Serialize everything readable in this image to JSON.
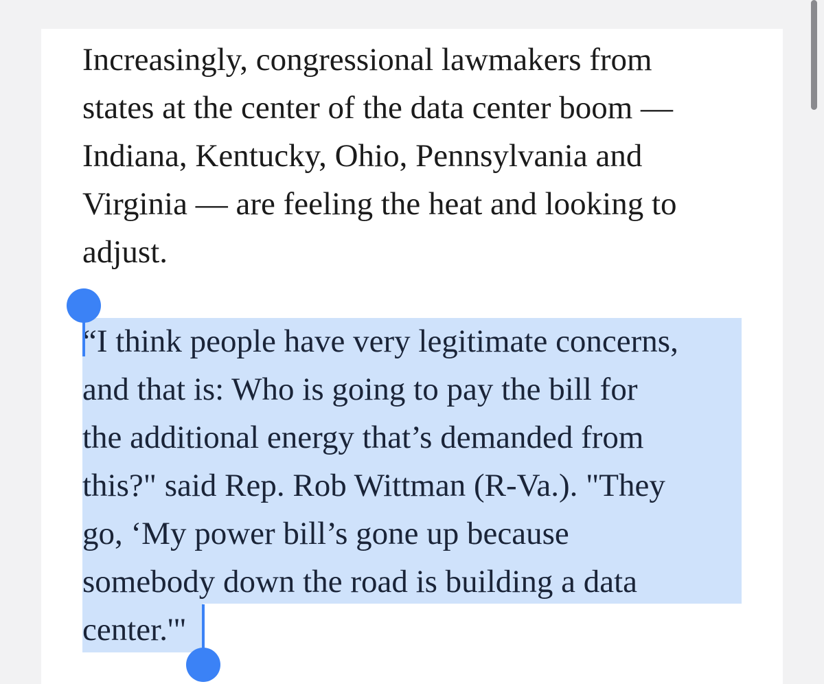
{
  "article": {
    "paragraphs": [
      {
        "lines": [
          "Increasingly, congressional lawmakers from",
          "states at the center of the data center boom —",
          "Indiana, Kentucky, Ohio, Pennsylvania and",
          "Virginia — are feeling the heat and looking to",
          "adjust."
        ]
      },
      {
        "lines": [
          "“I think people have very legitimate concerns,",
          "and that is: Who is going to pay the bill for",
          "the additional energy that’s demanded from",
          "this?\" said Rep. Rob Wittman (R-Va.). \"They",
          "go, ‘My power bill’s gone up because",
          "somebody down the road is building a data",
          "center.'\""
        ]
      }
    ]
  }
}
